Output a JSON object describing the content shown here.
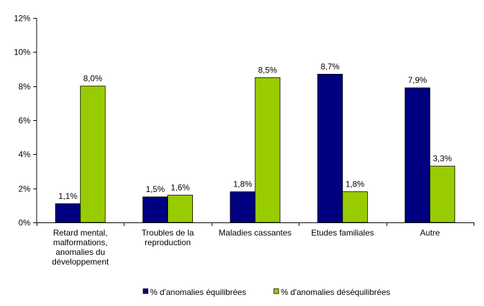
{
  "chart_data": {
    "type": "bar",
    "categories": [
      [
        "Retard mental,",
        "malformations,",
        "anomalies du",
        "développement"
      ],
      [
        "Troubles de la",
        "reproduction"
      ],
      [
        "Maladies cassantes"
      ],
      [
        "Etudes familiales"
      ],
      [
        "Autre"
      ]
    ],
    "series": [
      {
        "name": "% d'anomalies équilibrées",
        "color": "#000080",
        "values": [
          1.1,
          1.5,
          1.8,
          8.7,
          7.9
        ],
        "labels": [
          "1,1%",
          "1,5%",
          "1,8%",
          "8,7%",
          "7,9%"
        ]
      },
      {
        "name": "% d'anomalies déséquilibrées",
        "color": "#99CC00",
        "values": [
          8.0,
          1.6,
          8.5,
          1.8,
          3.3
        ],
        "labels": [
          "8,0%",
          "1,6%",
          "8,5%",
          "1,8%",
          "3,3%"
        ]
      }
    ],
    "y_ticks": [
      0,
      2,
      4,
      6,
      8,
      10,
      12
    ],
    "y_tick_labels": [
      "0%",
      "2%",
      "4%",
      "6%",
      "8%",
      "10%",
      "12%"
    ],
    "ylim": [
      0,
      12
    ],
    "grid": false,
    "legend_position": "bottom"
  }
}
